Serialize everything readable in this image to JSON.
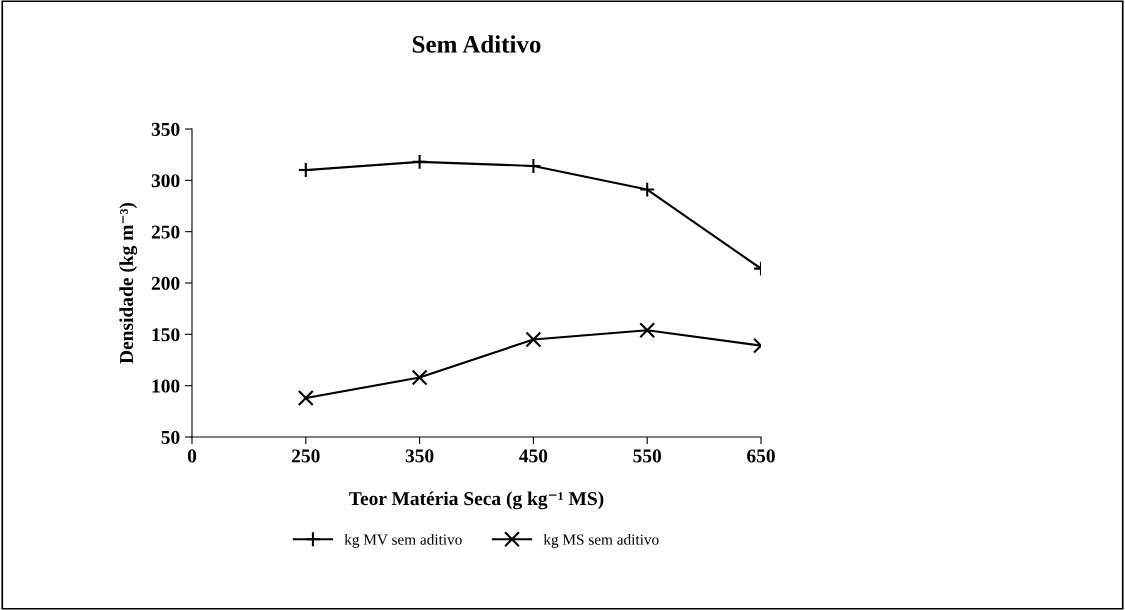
{
  "chart_data": {
    "type": "line",
    "title": "Sem Aditivo",
    "xlabel": "Teor Matéria Seca (g kg⁻¹ MS)",
    "ylabel": "Densidade (kg m⁻³)",
    "categories": [
      "0",
      "250",
      "350",
      "450",
      "550",
      "650"
    ],
    "series": [
      {
        "name": "kg MV sem aditivo",
        "color": "#000000",
        "marker": "cross",
        "values": [
          null,
          310,
          318,
          314,
          291,
          214
        ]
      },
      {
        "name": "kg MS sem aditivo",
        "color": "#000000",
        "marker": "cross",
        "values": [
          null,
          88,
          108,
          145,
          154,
          139
        ]
      }
    ],
    "ylim": [
      50,
      350
    ],
    "yticks": [
      50,
      100,
      150,
      200,
      250,
      300,
      350
    ],
    "grid": false,
    "legend": "bottom",
    "line_style": "solid"
  }
}
